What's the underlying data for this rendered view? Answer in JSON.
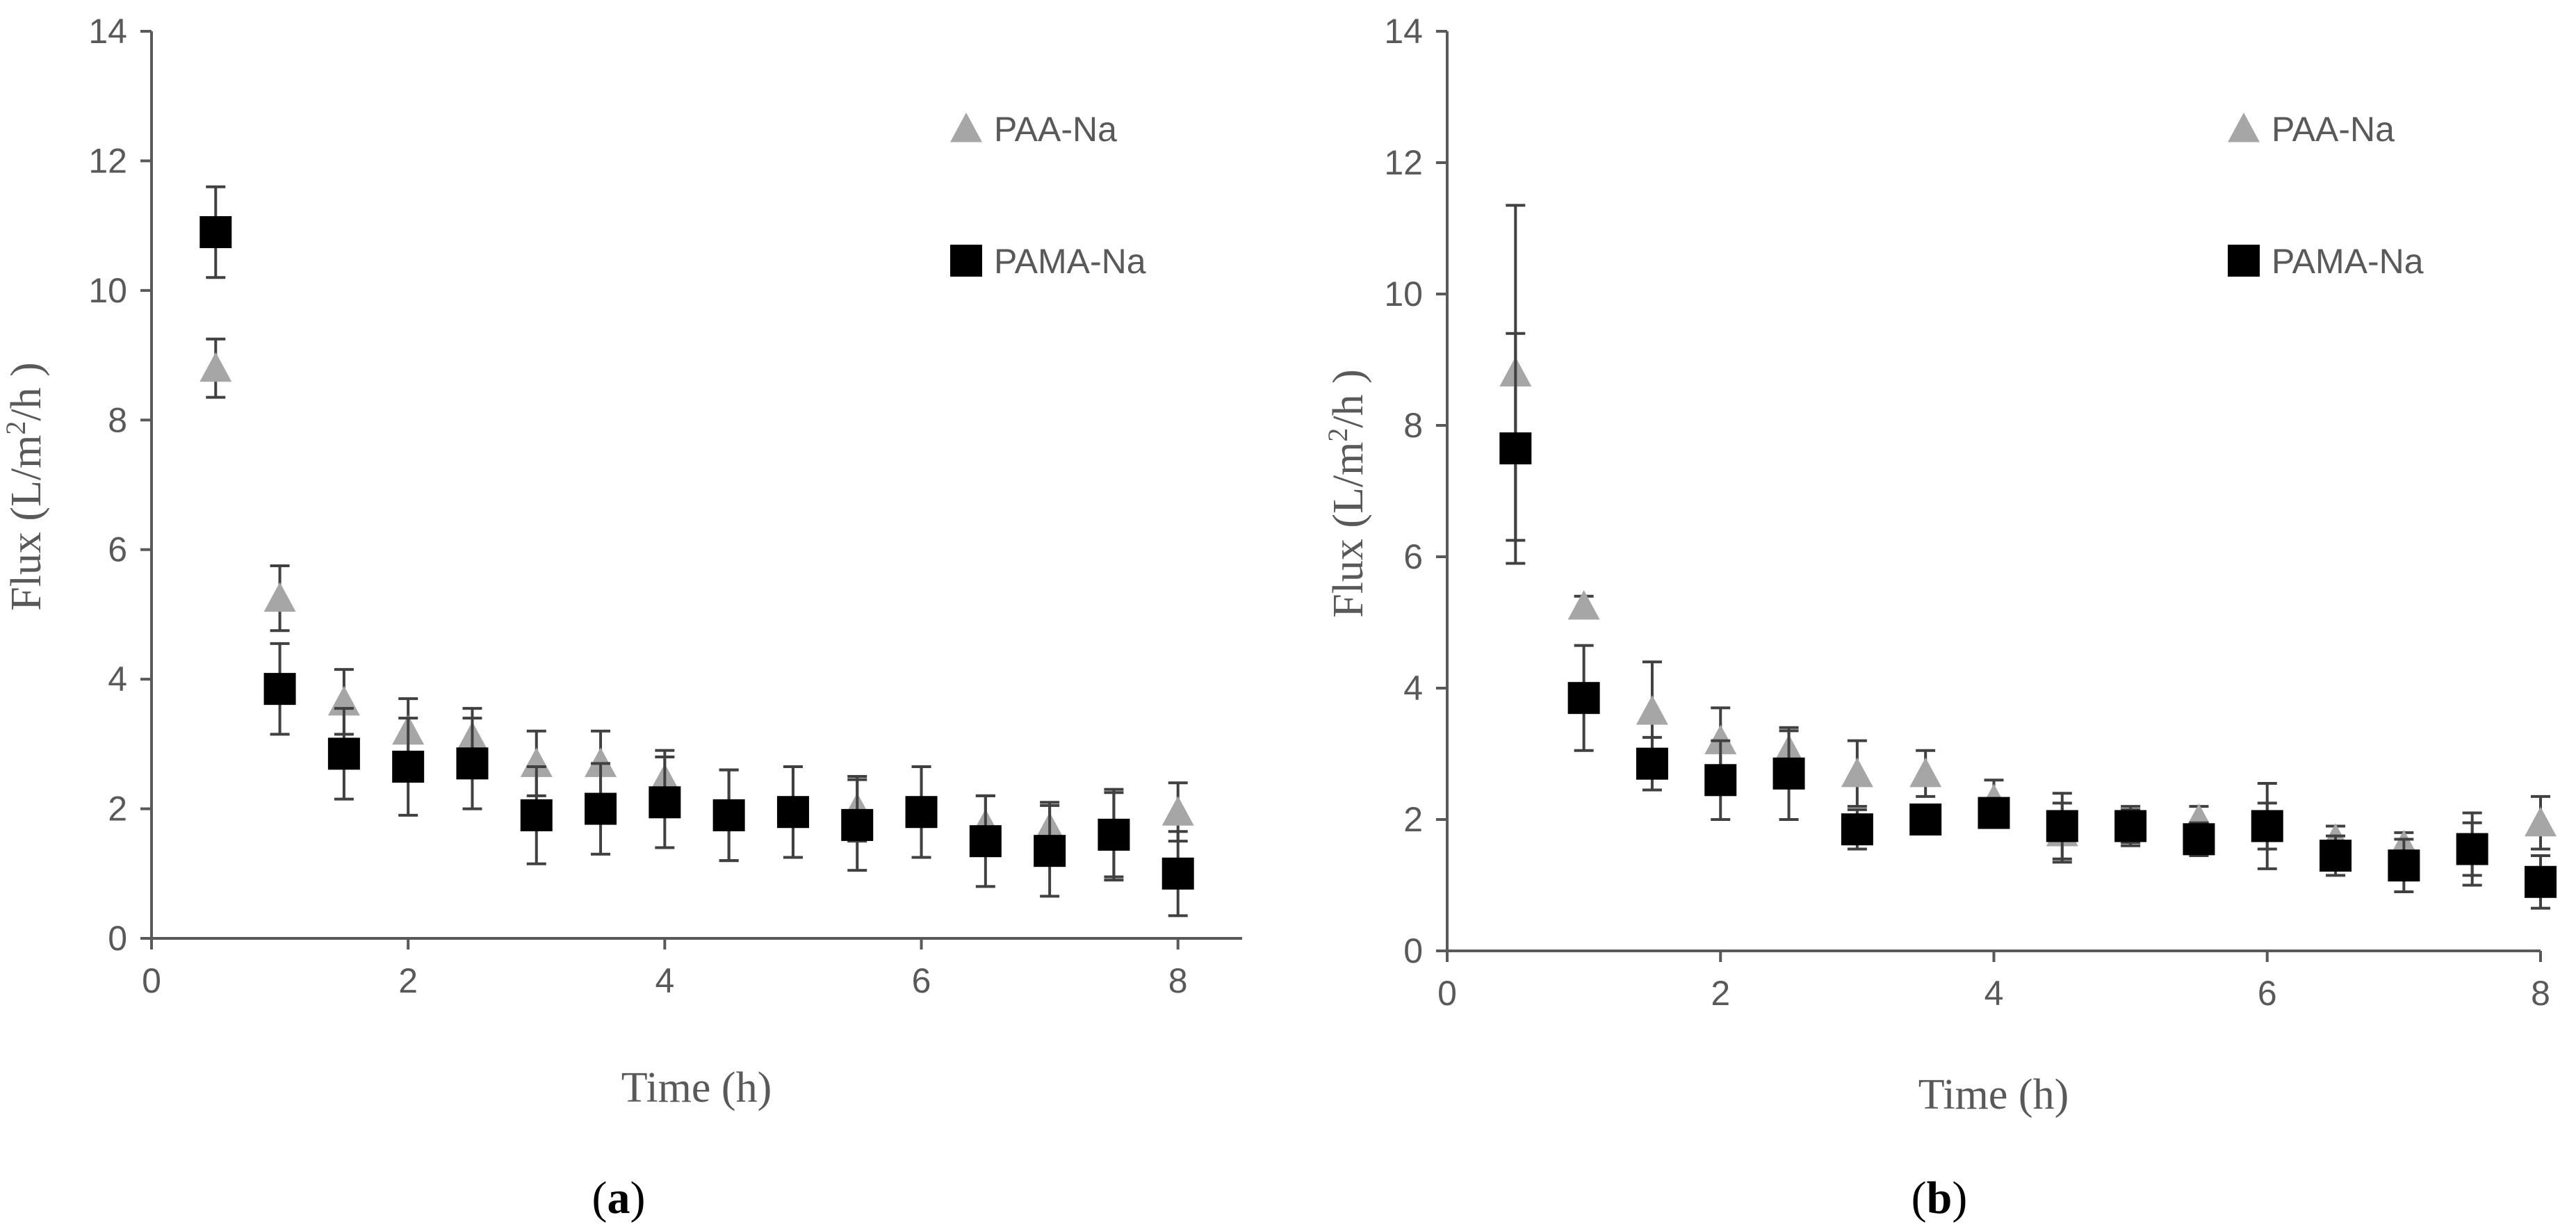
{
  "colors": {
    "paa": "#a6a6a6",
    "pama": "#000000",
    "axis": "#595959",
    "errorbar": "#404040"
  },
  "chart_data": [
    {
      "type": "scatter",
      "panel_label": {
        "open": "(",
        "letter": "a",
        "close": ")"
      },
      "xlabel": "Time (h)",
      "ylabel": {
        "base": "Flux (L/m",
        "sup": "2",
        "tail": "/h )"
      },
      "xlim": [
        0,
        8.5
      ],
      "ylim": [
        0,
        14
      ],
      "xticks": [
        0,
        2,
        4,
        6,
        8
      ],
      "xtick_labels": [
        "0",
        "2",
        "4",
        "6",
        "8"
      ],
      "yticks": [
        0,
        2,
        4,
        6,
        8,
        10,
        12,
        14
      ],
      "ytick_labels": [
        "0",
        "2",
        "4",
        "6",
        "8",
        "10",
        "12",
        "14"
      ],
      "legend": [
        "PAA-Na",
        "PAMA-Na"
      ],
      "legend_position": "top-right",
      "series": [
        {
          "name": "PAA-Na",
          "marker": "triangle",
          "x": [
            0.5,
            1,
            1.5,
            2,
            2.5,
            3,
            3.5,
            4,
            4.5,
            5,
            5.5,
            6,
            6.5,
            7,
            7.5,
            8
          ],
          "y": [
            8.8,
            5.25,
            3.65,
            3.2,
            3.1,
            2.7,
            2.7,
            2.45,
            1.9,
            1.95,
            2.0,
            1.95,
            1.75,
            1.7,
            1.6,
            1.95
          ],
          "err": [
            0.45,
            0.5,
            0.5,
            0.5,
            0.45,
            0.5,
            0.5,
            0.45,
            0.7,
            0.7,
            0.5,
            0.7,
            0.45,
            0.4,
            0.7,
            0.45
          ]
        },
        {
          "name": "PAMA-Na",
          "marker": "square",
          "x": [
            0.5,
            1,
            1.5,
            2,
            2.5,
            3,
            3.5,
            4,
            4.5,
            5,
            5.5,
            6,
            6.5,
            7,
            7.5,
            8
          ],
          "y": [
            10.9,
            3.85,
            2.85,
            2.65,
            2.7,
            1.9,
            2.0,
            2.1,
            1.9,
            1.95,
            1.75,
            1.95,
            1.5,
            1.35,
            1.6,
            1.0
          ],
          "err": [
            0.7,
            0.7,
            0.7,
            0.75,
            0.7,
            0.75,
            0.7,
            0.7,
            0.7,
            0.7,
            0.7,
            0.7,
            0.7,
            0.7,
            0.65,
            0.65
          ]
        }
      ]
    },
    {
      "type": "scatter",
      "panel_label": {
        "open": "(",
        "letter": "b",
        "close": ")"
      },
      "xlabel": "Time (h)",
      "ylabel": {
        "base": "Flux (L/m",
        "sup": "2",
        "tail": "/h )"
      },
      "xlim": [
        0,
        8
      ],
      "ylim": [
        0,
        14
      ],
      "xticks": [
        0,
        2,
        4,
        6,
        8
      ],
      "xtick_labels": [
        "0",
        "2",
        "4",
        "6",
        "8"
      ],
      "yticks": [
        0,
        2,
        4,
        6,
        8,
        10,
        12,
        14
      ],
      "ytick_labels": [
        "0",
        "2",
        "4",
        "6",
        "8",
        "10",
        "12",
        "14"
      ],
      "legend": [
        "PAA-Na",
        "PAMA-Na"
      ],
      "legend_position": "top-right",
      "series": [
        {
          "name": "PAA-Na",
          "marker": "triangle",
          "x": [
            0.5,
            1,
            1.5,
            2,
            2.5,
            3,
            3.5,
            4,
            4.5,
            5,
            5.5,
            6,
            6.5,
            7,
            7.5,
            8
          ],
          "y": [
            8.8,
            5.25,
            3.65,
            3.2,
            3.05,
            2.7,
            2.7,
            2.3,
            1.8,
            1.9,
            2.0,
            1.9,
            1.7,
            1.6,
            1.55,
            1.95
          ],
          "err": [
            2.55,
            0.15,
            0.75,
            0.5,
            0.3,
            0.5,
            0.35,
            0.3,
            0.45,
            0.3,
            0.2,
            0.35,
            0.2,
            0.2,
            0.4,
            0.4
          ]
        },
        {
          "name": "PAMA-Na",
          "marker": "square",
          "x": [
            0.5,
            1,
            1.5,
            2,
            2.5,
            3,
            3.5,
            4,
            4.5,
            5,
            5.5,
            6,
            6.5,
            7,
            7.5,
            8
          ],
          "y": [
            7.65,
            3.85,
            2.85,
            2.6,
            2.7,
            1.85,
            2.0,
            2.1,
            1.9,
            1.9,
            1.7,
            1.9,
            1.45,
            1.3,
            1.55,
            1.05
          ],
          "err": [
            1.75,
            0.8,
            0.4,
            0.6,
            0.7,
            0.3,
            0.2,
            0.15,
            0.5,
            0.25,
            0.25,
            0.65,
            0.3,
            0.4,
            0.55,
            0.4
          ]
        }
      ]
    }
  ]
}
